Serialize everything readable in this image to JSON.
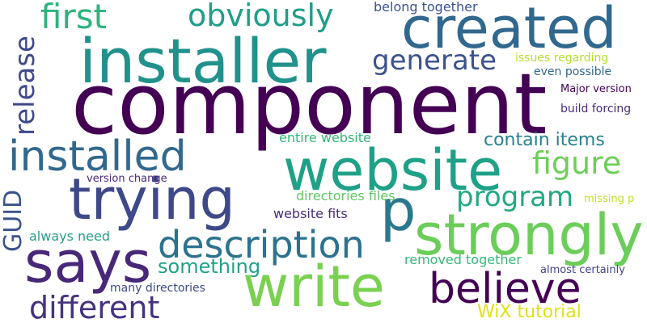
{
  "words": [
    {
      "text": "component",
      "color": "#440154"
    },
    {
      "text": "installer",
      "color": "#21918c"
    },
    {
      "text": "created",
      "color": "#31688e"
    },
    {
      "text": "website",
      "color": "#1fa187"
    },
    {
      "text": "trying",
      "color": "#3e4989"
    },
    {
      "text": "says",
      "color": "#482878"
    },
    {
      "text": "write",
      "color": "#7ad151"
    },
    {
      "text": "strongly",
      "color": "#6ccd5a"
    },
    {
      "text": "believe",
      "color": "#440154"
    },
    {
      "text": "installed",
      "color": "#31688e"
    },
    {
      "text": "description",
      "color": "#2c728e"
    },
    {
      "text": "p",
      "color": "#2a788e"
    },
    {
      "text": "first",
      "color": "#2eb37c"
    },
    {
      "text": "obviously",
      "color": "#1f9e89"
    },
    {
      "text": "generate",
      "color": "#3b528b"
    },
    {
      "text": "different",
      "color": "#46337e"
    },
    {
      "text": "program",
      "color": "#22a884"
    },
    {
      "text": "figure",
      "color": "#6ece58"
    },
    {
      "text": "release",
      "color": "#3e4989"
    },
    {
      "text": "GUID",
      "color": "#3b528b"
    },
    {
      "text": "contain items",
      "color": "#26828e"
    },
    {
      "text": "something",
      "color": "#1fa187"
    },
    {
      "text": "belong together",
      "color": "#3b528b"
    },
    {
      "text": "issues regarding",
      "color": "#b5de2b"
    },
    {
      "text": "even possible",
      "color": "#31688e"
    },
    {
      "text": "Major version",
      "color": "#440154"
    },
    {
      "text": "build forcing",
      "color": "#472d7b"
    },
    {
      "text": "entire website",
      "color": "#35b779"
    },
    {
      "text": "version change",
      "color": "#482878"
    },
    {
      "text": "directories files",
      "color": "#5ec962"
    },
    {
      "text": "website fits",
      "color": "#472d7b"
    },
    {
      "text": "always need",
      "color": "#2a9c8a"
    },
    {
      "text": "removed together",
      "color": "#35b779"
    },
    {
      "text": "almost certainly",
      "color": "#414487"
    },
    {
      "text": "many directories",
      "color": "#3e4989"
    },
    {
      "text": "WiX tutorial",
      "color": "#dde318"
    },
    {
      "text": "missing p",
      "color": "#c2df23"
    }
  ]
}
